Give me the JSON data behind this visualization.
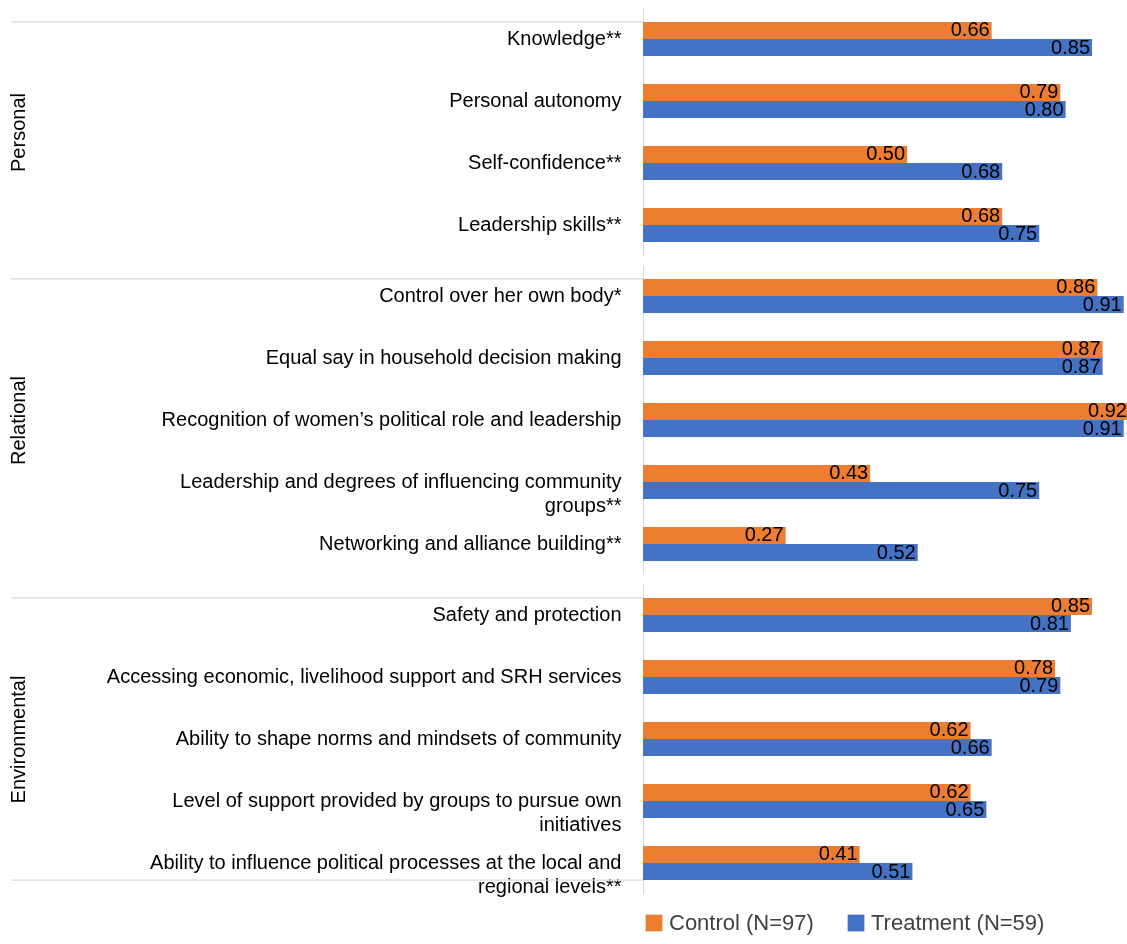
{
  "chart_data": [
    {
      "type": "bar",
      "orientation": "horizontal",
      "ylabel": "Personal",
      "categories": [
        "Knowledge**",
        "Personal autonomy",
        "Self-confidence**",
        "Leadership skills**"
      ],
      "series": [
        {
          "color": "#ed7d31",
          "values": [
            0.66,
            0.79,
            0.5,
            0.68
          ],
          "value_labels": [
            "0.66",
            "0.79",
            "0.50",
            "0.68"
          ]
        },
        {
          "color": "#4472c4",
          "values": [
            0.85,
            0.8,
            0.68,
            0.75
          ],
          "value_labels": [
            "0.85",
            "0.80",
            "0.68",
            "0.75"
          ]
        }
      ]
    },
    {
      "type": "bar",
      "orientation": "horizontal",
      "ylabel": "Relational",
      "categories": [
        "Control over her own body*",
        "Equal say in household decision making",
        "Recognition of women’s political role and leadership",
        "Leadership and degrees of influencing community groups**",
        "Networking and alliance building**"
      ],
      "series": [
        {
          "color": "#ed7d31",
          "values": [
            0.86,
            0.87,
            0.92,
            0.43,
            0.27
          ],
          "value_labels": [
            "0.86",
            "0.87",
            "0.92",
            "0.43",
            "0.27"
          ]
        },
        {
          "color": "#4472c4",
          "values": [
            0.91,
            0.87,
            0.91,
            0.75,
            0.52
          ],
          "value_labels": [
            "0.91",
            "0.87",
            "0.91",
            "0.75",
            "0.52"
          ]
        }
      ]
    },
    {
      "type": "bar",
      "orientation": "horizontal",
      "ylabel": "Environmental",
      "legend": "bottom",
      "categories": [
        "Safety and protection",
        "Accessing economic, livelihood support and SRH services",
        "Ability to shape norms and mindsets of community",
        "Level of support provided by groups to pursue own initiatives",
        "Ability to influence political processes at the local and regional levels**"
      ],
      "series": [
        {
          "name": "Control  (N=97)",
          "color": "#ed7d31",
          "values": [
            0.85,
            0.78,
            0.62,
            0.62,
            0.41
          ],
          "value_labels": [
            "0.85",
            "0.78",
            "0.62",
            "0.62",
            "0.41"
          ]
        },
        {
          "name": "Treatment (N=59)",
          "color": "#4472c4",
          "values": [
            0.81,
            0.79,
            0.66,
            0.65,
            0.51
          ],
          "value_labels": [
            "0.81",
            "0.79",
            "0.66",
            "0.65",
            "0.51"
          ]
        }
      ]
    }
  ]
}
